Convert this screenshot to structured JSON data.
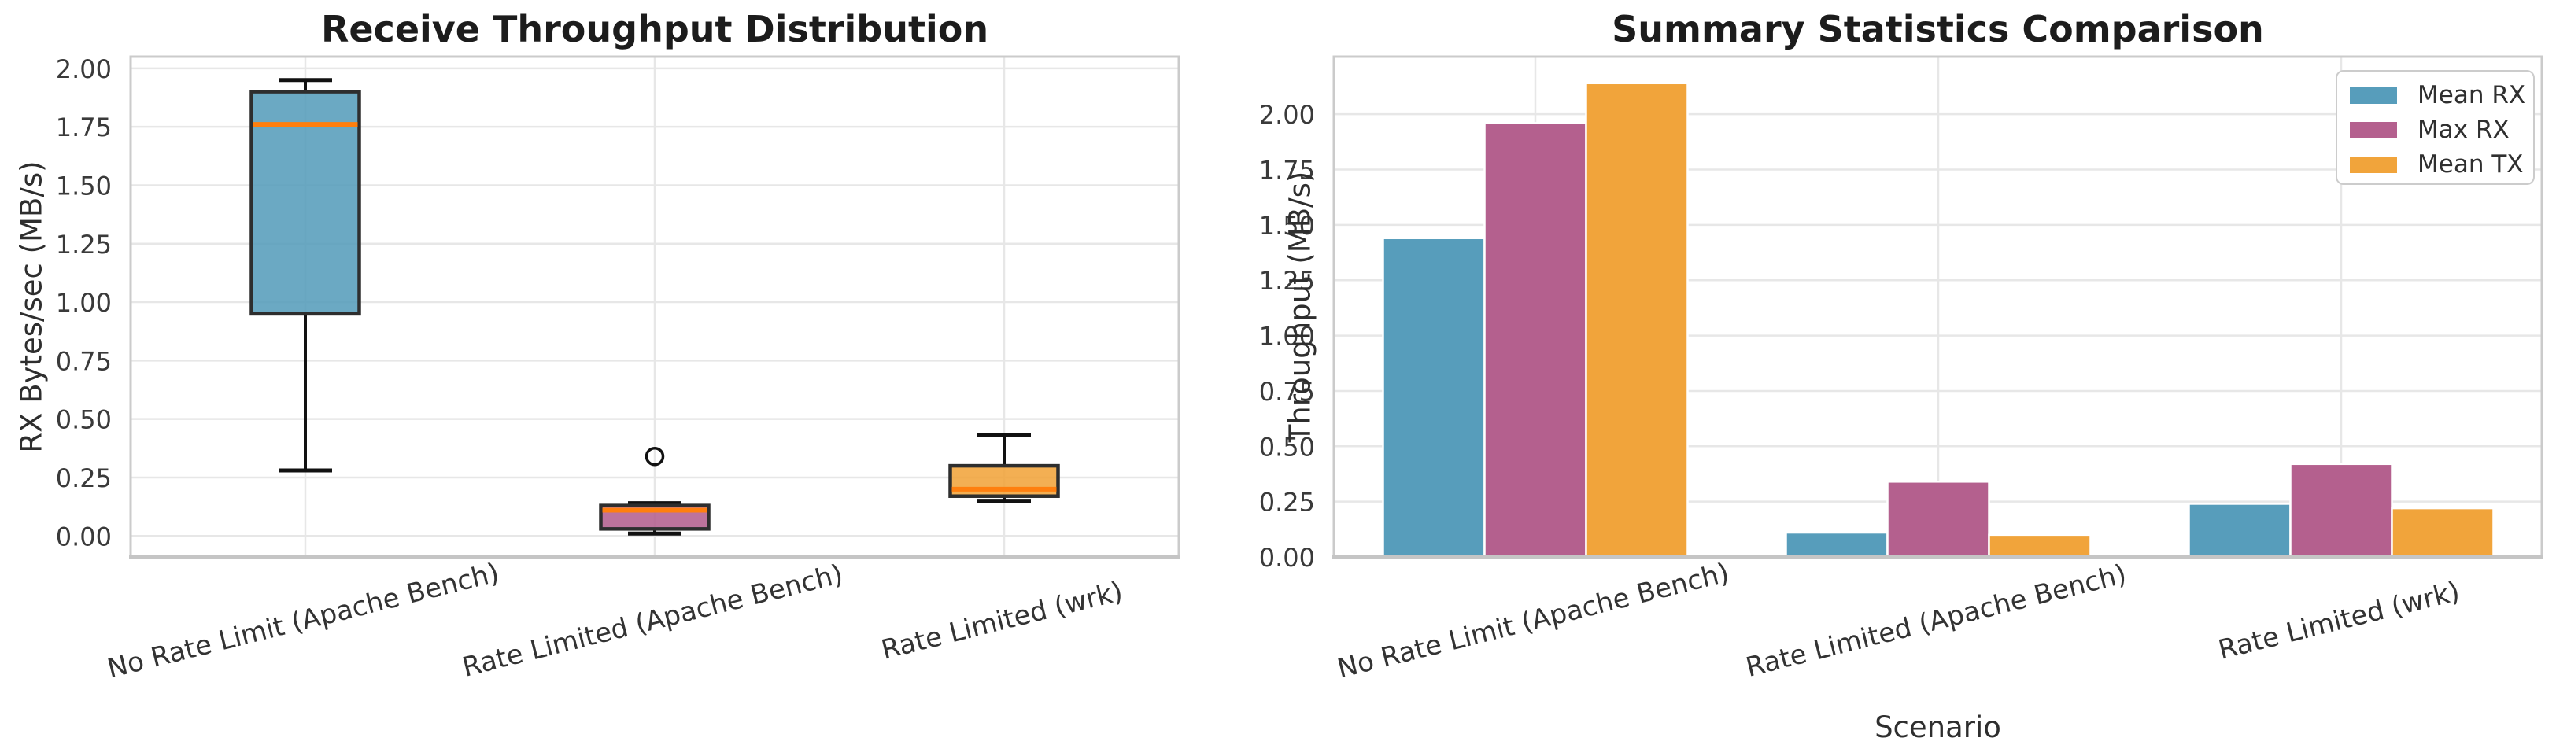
{
  "figure": {
    "background": "#FFFFFF",
    "grid_color": "#E7E7E7",
    "spine_color": "#CBCBCB",
    "tick_color": "#3A3A3A",
    "title_color": "#1C1C1C",
    "whisker_color": "#111111",
    "box_edge_color": "#2E2E2E"
  },
  "chart_data": [
    {
      "type": "box",
      "title": "Receive Throughput Distribution",
      "xlabel": "",
      "ylabel": "RX Bytes/sec (MB/s)",
      "categories": [
        "No Rate Limit (Apache Bench)",
        "Rate Limited (Apache Bench)",
        "Rate Limited (wrk)"
      ],
      "ylim": [
        -0.09,
        2.05
      ],
      "yticks": [
        0.0,
        0.25,
        0.5,
        0.75,
        1.0,
        1.25,
        1.5,
        1.75,
        2.0
      ],
      "ytick_labels": [
        "0.00",
        "0.25",
        "0.50",
        "0.75",
        "1.00",
        "1.25",
        "1.50",
        "1.75",
        "2.00"
      ],
      "grid": true,
      "median_color": "#FF7F0E",
      "boxes": [
        {
          "label": "No Rate Limit (Apache Bench)",
          "color": "#579DBB",
          "whisker_low": 0.28,
          "q1": 0.95,
          "median": 1.76,
          "q3": 1.9,
          "whisker_high": 1.95,
          "outliers": []
        },
        {
          "label": "Rate Limited (Apache Bench)",
          "color": "#B4608E",
          "whisker_low": 0.01,
          "q1": 0.03,
          "median": 0.11,
          "q3": 0.13,
          "whisker_high": 0.14,
          "outliers": [
            0.34
          ]
        },
        {
          "label": "Rate Limited (wrk)",
          "color": "#F1A43B",
          "whisker_low": 0.15,
          "q1": 0.17,
          "median": 0.2,
          "q3": 0.3,
          "whisker_high": 0.43,
          "outliers": []
        }
      ]
    },
    {
      "type": "bar",
      "title": "Summary Statistics Comparison",
      "xlabel": "Scenario",
      "ylabel": "Throughput (MB/s)",
      "categories": [
        "No Rate Limit (Apache Bench)",
        "Rate Limited (Apache Bench)",
        "Rate Limited (wrk)"
      ],
      "series": [
        {
          "name": "Mean RX",
          "color": "#579DBB",
          "values": [
            1.44,
            0.11,
            0.24
          ]
        },
        {
          "name": "Max RX",
          "color": "#B4608E",
          "values": [
            1.96,
            0.34,
            0.42
          ]
        },
        {
          "name": "Mean TX",
          "color": "#F1A43B",
          "values": [
            2.14,
            0.1,
            0.22
          ]
        }
      ],
      "ylim": [
        0,
        2.26
      ],
      "yticks": [
        0.0,
        0.25,
        0.5,
        0.75,
        1.0,
        1.25,
        1.5,
        1.75,
        2.0
      ],
      "ytick_labels": [
        "0.00",
        "0.25",
        "0.50",
        "0.75",
        "1.00",
        "1.25",
        "1.50",
        "1.75",
        "2.00"
      ],
      "grid": true,
      "legend": {
        "position": "upper right",
        "entries": [
          "Mean RX",
          "Max RX",
          "Mean TX"
        ]
      }
    }
  ]
}
